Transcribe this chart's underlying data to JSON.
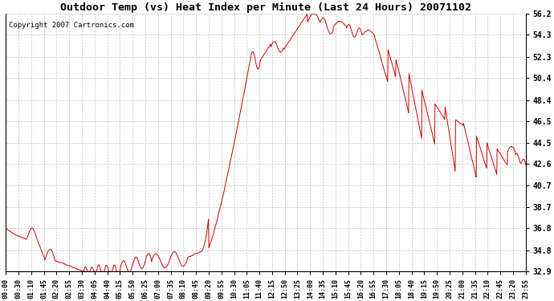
{
  "title": "Outdoor Temp (vs) Heat Index per Minute (Last 24 Hours) 20071102",
  "copyright_text": "Copyright 2007 Cartronics.com",
  "line_color": "#cc0000",
  "background_color": "#ffffff",
  "grid_color": "#c0c0c0",
  "yticks": [
    32.9,
    34.8,
    36.8,
    38.7,
    40.7,
    42.6,
    44.5,
    46.5,
    48.4,
    50.4,
    52.3,
    54.3,
    56.2
  ],
  "ymin": 32.9,
  "ymax": 56.2,
  "xtick_labels": [
    "00:00",
    "00:30",
    "01:10",
    "01:45",
    "02:20",
    "02:55",
    "03:30",
    "04:05",
    "04:40",
    "05:15",
    "05:50",
    "06:25",
    "07:00",
    "07:35",
    "08:10",
    "08:45",
    "09:20",
    "09:55",
    "10:30",
    "11:05",
    "11:40",
    "12:15",
    "12:50",
    "13:25",
    "14:00",
    "14:35",
    "15:10",
    "15:45",
    "16:20",
    "16:55",
    "17:30",
    "18:05",
    "18:40",
    "19:15",
    "19:50",
    "20:25",
    "21:00",
    "21:35",
    "22:10",
    "22:45",
    "23:20",
    "23:55"
  ],
  "figwidth": 6.9,
  "figheight": 3.75,
  "dpi": 100
}
